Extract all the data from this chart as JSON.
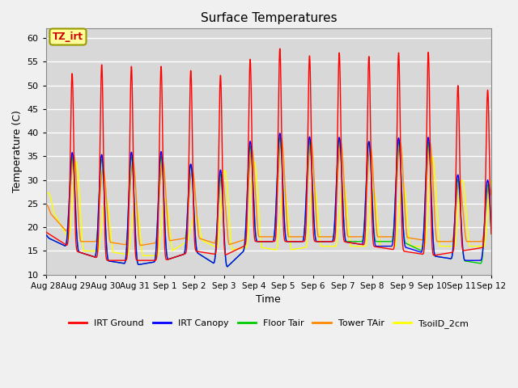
{
  "title": "Surface Temperatures",
  "xlabel": "Time",
  "ylabel": "Temperature (C)",
  "ylim": [
    10,
    62
  ],
  "yticks": [
    10,
    15,
    20,
    25,
    30,
    35,
    40,
    45,
    50,
    55,
    60
  ],
  "plot_bg": "#d8d8d8",
  "fig_bg": "#f0f0f0",
  "grid_color": "#ffffff",
  "series": {
    "IRT Ground": {
      "color": "#ff0000",
      "lw": 1.0
    },
    "IRT Canopy": {
      "color": "#0000ff",
      "lw": 1.0
    },
    "Floor Tair": {
      "color": "#00cc00",
      "lw": 1.0
    },
    "Tower TAir": {
      "color": "#ff8800",
      "lw": 1.0
    },
    "TsoilD_2cm": {
      "color": "#ffff00",
      "lw": 1.0
    }
  },
  "xtick_labels": [
    "Aug 28",
    "Aug 29",
    "Aug 30",
    "Aug 31",
    "Sep 1",
    "Sep 2",
    "Sep 3",
    "Sep 4",
    "Sep 5",
    "Sep 6",
    "Sep 7",
    "Sep 8",
    "Sep 9",
    "Sep 10",
    "Sep 11",
    "Sep 12"
  ],
  "annotation_text": "TZ_irt",
  "annotation_color": "#cc0000",
  "annotation_bg": "#ffff99",
  "annotation_border": "#999900",
  "n_days": 15
}
